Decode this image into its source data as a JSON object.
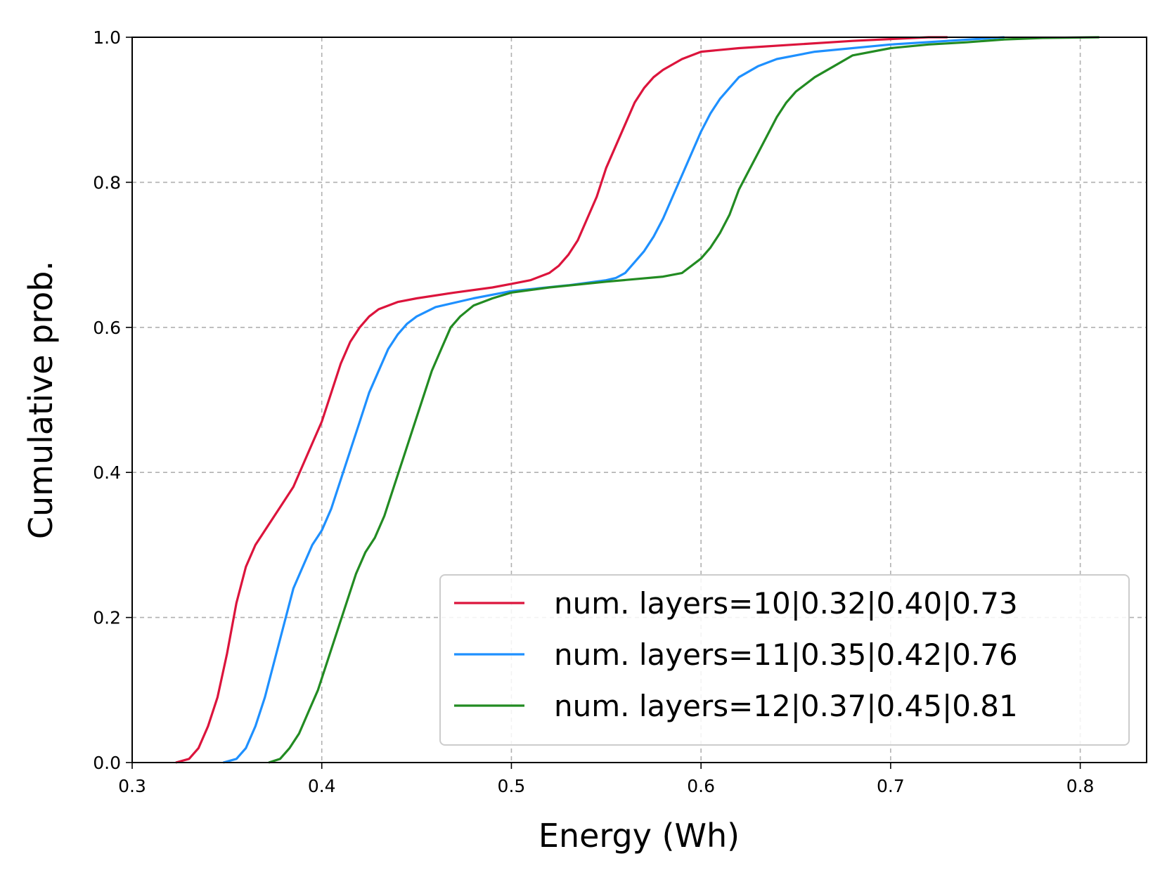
{
  "chart_data": {
    "type": "line",
    "title": "",
    "xlabel": "Energy (Wh)",
    "ylabel": "Cumulative prob.",
    "xlim": [
      0.3,
      0.835
    ],
    "ylim": [
      0.0,
      1.0
    ],
    "grid": true,
    "legend_position": "lower-right",
    "xticks": [
      0.3,
      0.4,
      0.5,
      0.6,
      0.7,
      0.8
    ],
    "xtick_labels": [
      "0.3",
      "0.4",
      "0.5",
      "0.6",
      "0.7",
      "0.8"
    ],
    "yticks": [
      0.0,
      0.2,
      0.4,
      0.6,
      0.8,
      1.0
    ],
    "ytick_labels": [
      "0.0",
      "0.2",
      "0.4",
      "0.6",
      "0.8",
      "1.0"
    ],
    "series": [
      {
        "name": "num. layers=10|0.32|0.40|0.73",
        "color": "#dc143c",
        "points": [
          [
            0.323,
            0.0
          ],
          [
            0.33,
            0.005
          ],
          [
            0.335,
            0.02
          ],
          [
            0.34,
            0.05
          ],
          [
            0.345,
            0.09
          ],
          [
            0.35,
            0.15
          ],
          [
            0.355,
            0.22
          ],
          [
            0.36,
            0.27
          ],
          [
            0.365,
            0.3
          ],
          [
            0.37,
            0.32
          ],
          [
            0.375,
            0.34
          ],
          [
            0.38,
            0.36
          ],
          [
            0.385,
            0.38
          ],
          [
            0.39,
            0.41
          ],
          [
            0.395,
            0.44
          ],
          [
            0.4,
            0.47
          ],
          [
            0.405,
            0.51
          ],
          [
            0.41,
            0.55
          ],
          [
            0.415,
            0.58
          ],
          [
            0.42,
            0.6
          ],
          [
            0.425,
            0.615
          ],
          [
            0.43,
            0.625
          ],
          [
            0.44,
            0.635
          ],
          [
            0.45,
            0.64
          ],
          [
            0.47,
            0.648
          ],
          [
            0.49,
            0.655
          ],
          [
            0.5,
            0.66
          ],
          [
            0.51,
            0.665
          ],
          [
            0.52,
            0.675
          ],
          [
            0.525,
            0.685
          ],
          [
            0.53,
            0.7
          ],
          [
            0.535,
            0.72
          ],
          [
            0.54,
            0.75
          ],
          [
            0.545,
            0.78
          ],
          [
            0.55,
            0.82
          ],
          [
            0.555,
            0.85
          ],
          [
            0.56,
            0.88
          ],
          [
            0.565,
            0.91
          ],
          [
            0.57,
            0.93
          ],
          [
            0.575,
            0.945
          ],
          [
            0.58,
            0.955
          ],
          [
            0.59,
            0.97
          ],
          [
            0.6,
            0.98
          ],
          [
            0.62,
            0.985
          ],
          [
            0.65,
            0.99
          ],
          [
            0.68,
            0.995
          ],
          [
            0.72,
            1.0
          ],
          [
            0.73,
            1.0
          ]
        ]
      },
      {
        "name": "num. layers=11|0.35|0.42|0.76",
        "color": "#1e90ff",
        "points": [
          [
            0.348,
            0.0
          ],
          [
            0.355,
            0.005
          ],
          [
            0.36,
            0.02
          ],
          [
            0.365,
            0.05
          ],
          [
            0.37,
            0.09
          ],
          [
            0.375,
            0.14
          ],
          [
            0.38,
            0.19
          ],
          [
            0.385,
            0.24
          ],
          [
            0.39,
            0.27
          ],
          [
            0.395,
            0.3
          ],
          [
            0.4,
            0.32
          ],
          [
            0.405,
            0.35
          ],
          [
            0.41,
            0.39
          ],
          [
            0.415,
            0.43
          ],
          [
            0.42,
            0.47
          ],
          [
            0.425,
            0.51
          ],
          [
            0.43,
            0.54
          ],
          [
            0.435,
            0.57
          ],
          [
            0.44,
            0.59
          ],
          [
            0.445,
            0.605
          ],
          [
            0.45,
            0.615
          ],
          [
            0.46,
            0.628
          ],
          [
            0.48,
            0.64
          ],
          [
            0.5,
            0.65
          ],
          [
            0.53,
            0.658
          ],
          [
            0.55,
            0.665
          ],
          [
            0.555,
            0.668
          ],
          [
            0.56,
            0.675
          ],
          [
            0.565,
            0.69
          ],
          [
            0.57,
            0.705
          ],
          [
            0.575,
            0.725
          ],
          [
            0.58,
            0.75
          ],
          [
            0.585,
            0.78
          ],
          [
            0.59,
            0.81
          ],
          [
            0.595,
            0.84
          ],
          [
            0.6,
            0.87
          ],
          [
            0.605,
            0.895
          ],
          [
            0.61,
            0.915
          ],
          [
            0.615,
            0.93
          ],
          [
            0.62,
            0.945
          ],
          [
            0.63,
            0.96
          ],
          [
            0.64,
            0.97
          ],
          [
            0.66,
            0.98
          ],
          [
            0.7,
            0.99
          ],
          [
            0.73,
            0.995
          ],
          [
            0.76,
            1.0
          ]
        ]
      },
      {
        "name": "num. layers=12|0.37|0.45|0.81",
        "color": "#228b22",
        "points": [
          [
            0.372,
            0.0
          ],
          [
            0.378,
            0.005
          ],
          [
            0.383,
            0.02
          ],
          [
            0.388,
            0.04
          ],
          [
            0.393,
            0.07
          ],
          [
            0.398,
            0.1
          ],
          [
            0.403,
            0.14
          ],
          [
            0.408,
            0.18
          ],
          [
            0.413,
            0.22
          ],
          [
            0.418,
            0.26
          ],
          [
            0.423,
            0.29
          ],
          [
            0.428,
            0.31
          ],
          [
            0.433,
            0.34
          ],
          [
            0.438,
            0.38
          ],
          [
            0.443,
            0.42
          ],
          [
            0.448,
            0.46
          ],
          [
            0.453,
            0.5
          ],
          [
            0.458,
            0.54
          ],
          [
            0.463,
            0.57
          ],
          [
            0.468,
            0.6
          ],
          [
            0.473,
            0.615
          ],
          [
            0.48,
            0.63
          ],
          [
            0.49,
            0.64
          ],
          [
            0.5,
            0.648
          ],
          [
            0.52,
            0.655
          ],
          [
            0.55,
            0.663
          ],
          [
            0.58,
            0.67
          ],
          [
            0.59,
            0.675
          ],
          [
            0.595,
            0.685
          ],
          [
            0.6,
            0.695
          ],
          [
            0.605,
            0.71
          ],
          [
            0.61,
            0.73
          ],
          [
            0.615,
            0.755
          ],
          [
            0.62,
            0.79
          ],
          [
            0.625,
            0.815
          ],
          [
            0.63,
            0.84
          ],
          [
            0.635,
            0.865
          ],
          [
            0.64,
            0.89
          ],
          [
            0.645,
            0.91
          ],
          [
            0.65,
            0.925
          ],
          [
            0.655,
            0.935
          ],
          [
            0.66,
            0.945
          ],
          [
            0.67,
            0.96
          ],
          [
            0.68,
            0.975
          ],
          [
            0.7,
            0.985
          ],
          [
            0.72,
            0.99
          ],
          [
            0.74,
            0.993
          ],
          [
            0.76,
            0.997
          ],
          [
            0.78,
            0.999
          ],
          [
            0.81,
            1.0
          ]
        ]
      }
    ]
  }
}
